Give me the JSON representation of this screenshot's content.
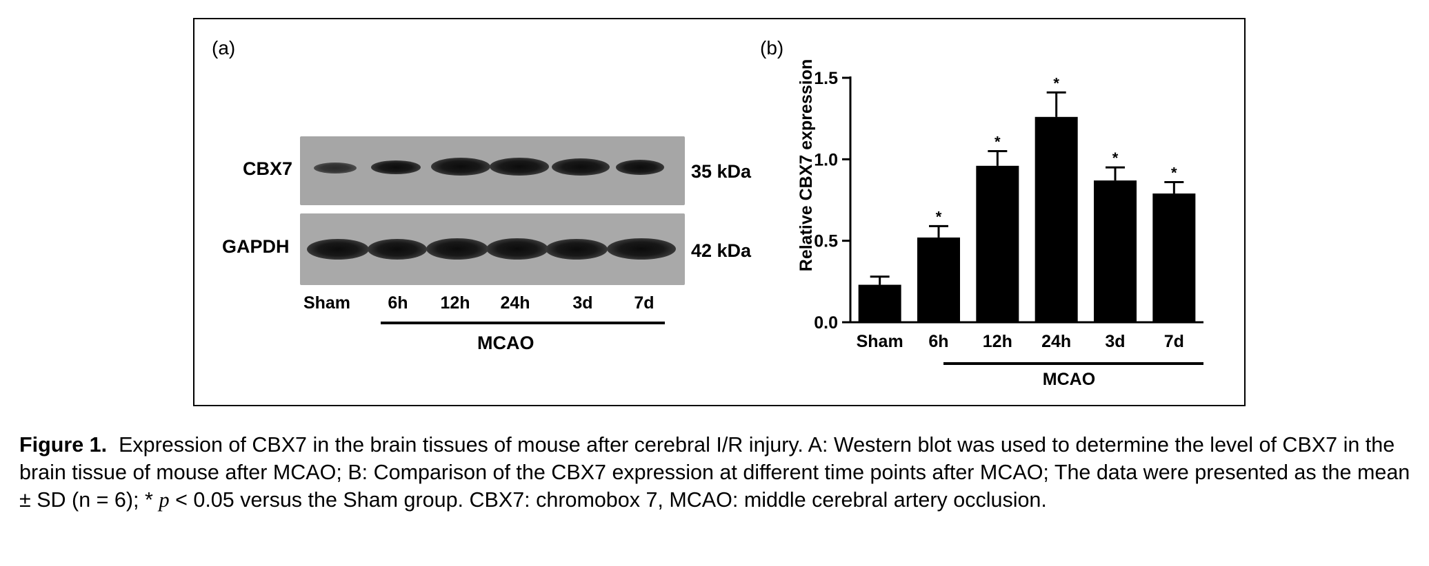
{
  "panel_a": {
    "label": "(a)",
    "rows": [
      {
        "protein": "CBX7",
        "size": "35 kDa"
      },
      {
        "protein": "GAPDH",
        "size": "42 kDa"
      }
    ],
    "lanes": [
      "Sham",
      "6h",
      "12h",
      "24h",
      "3d",
      "7d"
    ],
    "group_label": "MCAO"
  },
  "panel_b": {
    "label": "(b)",
    "group_label": "MCAO"
  },
  "chart_data": {
    "type": "bar",
    "title": "",
    "xlabel": "",
    "ylabel": "Relative CBX7 expression",
    "categories": [
      "Sham",
      "6h",
      "12h",
      "24h",
      "3d",
      "7d"
    ],
    "values": [
      0.23,
      0.52,
      0.96,
      1.26,
      0.87,
      0.79
    ],
    "error": [
      0.05,
      0.07,
      0.09,
      0.15,
      0.08,
      0.07
    ],
    "significance": [
      "",
      "*",
      "*",
      "*",
      "*",
      "*"
    ],
    "ylim": [
      0,
      1.5
    ],
    "yticks": [
      "0.0",
      "0.5",
      "1.0",
      "1.5"
    ],
    "bar_color": "#000000",
    "grid": false
  },
  "caption": {
    "figure_label": "Figure 1.",
    "text_before_p": "Expression of CBX7 in the brain tissues of mouse after cerebral I/R injury. A: Western blot was used to determine the level of CBX7 in the brain tissue of mouse after MCAO; B: Comparison of the CBX7 expression at different time points after MCAO; The data were presented as the mean ± SD (n = 6); * ",
    "p_symbol": "p",
    "text_after_p": " < 0.05 versus the Sham group. CBX7: chromobox 7, MCAO: middle cerebral artery occlusion."
  }
}
